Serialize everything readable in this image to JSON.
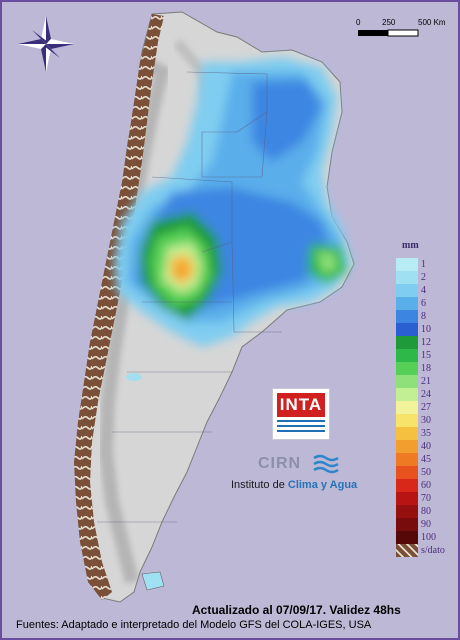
{
  "map": {
    "scale": {
      "labels": [
        "0",
        "250",
        "500 Km"
      ]
    },
    "compass": "compass-rose-icon"
  },
  "legend": {
    "title": "mm",
    "items": [
      {
        "label": "1",
        "color": "#b8ecf5"
      },
      {
        "label": "2",
        "color": "#9fe0f2"
      },
      {
        "label": "4",
        "color": "#7fcdf0"
      },
      {
        "label": "6",
        "color": "#5aaeea"
      },
      {
        "label": "8",
        "color": "#3c86e2"
      },
      {
        "label": "10",
        "color": "#2a5fd2"
      },
      {
        "label": "12",
        "color": "#1f9a3a"
      },
      {
        "label": "15",
        "color": "#2fb84a"
      },
      {
        "label": "18",
        "color": "#55cf55"
      },
      {
        "label": "21",
        "color": "#8fe07a"
      },
      {
        "label": "24",
        "color": "#c2ef94"
      },
      {
        "label": "27",
        "color": "#f2f29a"
      },
      {
        "label": "30",
        "color": "#f7e26a"
      },
      {
        "label": "35",
        "color": "#f5c040"
      },
      {
        "label": "40",
        "color": "#f29e2e"
      },
      {
        "label": "45",
        "color": "#ee7a24"
      },
      {
        "label": "50",
        "color": "#e8521e"
      },
      {
        "label": "60",
        "color": "#d8281a"
      },
      {
        "label": "70",
        "color": "#b81414"
      },
      {
        "label": "80",
        "color": "#961010"
      },
      {
        "label": "90",
        "color": "#780c0c"
      },
      {
        "label": "100",
        "color": "#560808"
      },
      {
        "label": "s/dato",
        "color": "#7a5038"
      }
    ]
  },
  "logos": {
    "inta": "INTA",
    "cirn": "CIRN",
    "institute_prefix": "Instituto de ",
    "institute_name": "Clima y Agua"
  },
  "footer": {
    "updated": "Actualizado al 07/09/17. Validez 48hs",
    "sources": "Fuentes: Adaptado e interpretado del Modelo GFS del COLA-IGES, USA"
  }
}
